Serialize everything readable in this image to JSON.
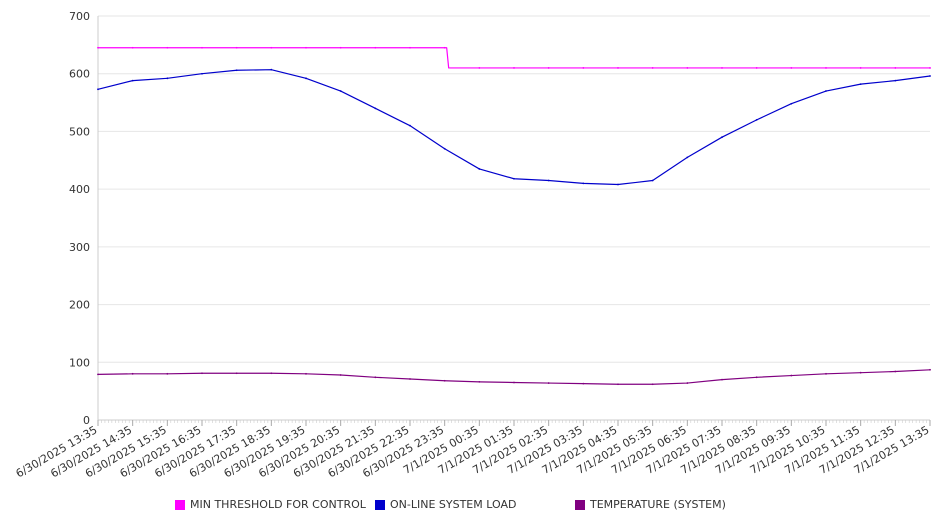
{
  "chart_data": {
    "type": "line",
    "ylim": [
      0,
      700
    ],
    "yticks": [
      "0",
      "100",
      "200",
      "300",
      "400",
      "500",
      "600",
      "700"
    ],
    "grid": true,
    "legend_placement": "bottom",
    "x": [
      "6/30/2025 13:35",
      "6/30/2025 14:35",
      "6/30/2025 15:35",
      "6/30/2025 16:35",
      "6/30/2025 17:35",
      "6/30/2025 18:35",
      "6/30/2025 19:35",
      "6/30/2025 20:35",
      "6/30/2025 21:35",
      "6/30/2025 22:35",
      "6/30/2025 23:35",
      "7/1/2025 00:35",
      "7/1/2025 01:35",
      "7/1/2025 02:35",
      "7/1/2025 03:35",
      "7/1/2025 04:35",
      "7/1/2025 05:35",
      "7/1/2025 06:35",
      "7/1/2025 07:35",
      "7/1/2025 08:35",
      "7/1/2025 09:35",
      "7/1/2025 10:35",
      "7/1/2025 11:35",
      "7/1/2025 12:35",
      "7/1/2025 13:35"
    ],
    "series": [
      {
        "name": "MIN THRESHOLD FOR CONTROL",
        "color": "#ff00ff",
        "values": [
          645,
          645,
          645,
          645,
          645,
          645,
          645,
          645,
          645,
          645,
          645,
          610,
          610,
          610,
          610,
          610,
          610,
          610,
          610,
          610,
          610,
          610,
          610,
          610,
          610
        ],
        "step_after_index": 10
      },
      {
        "name": "ON-LINE SYSTEM LOAD",
        "color": "#0000cc",
        "values": [
          573,
          588,
          592,
          600,
          606,
          607,
          592,
          570,
          540,
          510,
          470,
          435,
          418,
          415,
          410,
          408,
          415,
          455,
          490,
          520,
          548,
          570,
          582,
          588,
          596
        ]
      },
      {
        "name": "TEMPERATURE (SYSTEM)",
        "color": "#800080",
        "values": [
          79,
          80,
          80,
          81,
          81,
          81,
          80,
          78,
          74,
          71,
          68,
          66,
          65,
          64,
          63,
          62,
          62,
          64,
          70,
          74,
          77,
          80,
          82,
          84,
          87
        ]
      }
    ]
  }
}
